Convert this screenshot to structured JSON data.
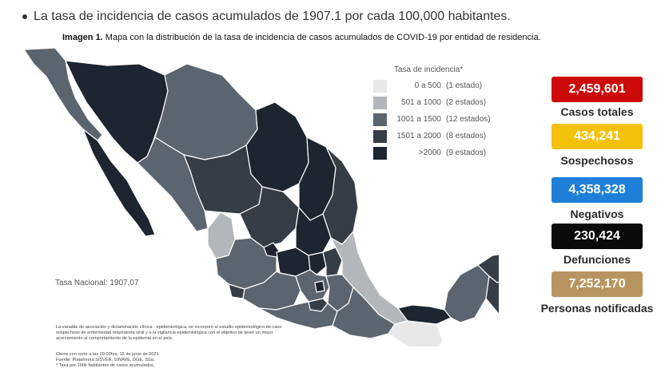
{
  "header": {
    "bullet_text": "La tasa de incidencia de casos acumulados de 1907.1 por cada 100,000 habitantes.",
    "figure_label": "Imagen 1.",
    "figure_caption": " Mapa con la distribución de la tasa de incidencia de casos acumulados de COVID-19 por entidad de residencia."
  },
  "legend": {
    "title": "Tasa de incidencia*",
    "items": [
      {
        "range": "0 a    500",
        "count": "(1 estado)",
        "color": "#e8e8e8"
      },
      {
        "range": "501 a  1000",
        "count": "(2 estados)",
        "color": "#b3b6ba"
      },
      {
        "range": "1001 a  1500",
        "count": "(12 estados)",
        "color": "#5b6570"
      },
      {
        "range": "1501 a  2000",
        "count": "(8 estados)",
        "color": "#353d47"
      },
      {
        "range": ">2000",
        "count": "(9 estados)",
        "color": "#1c2530"
      }
    ]
  },
  "stats": [
    {
      "value": "2,459,601",
      "label": "Casos totales",
      "color": "#cc0a0a"
    },
    {
      "value": "434,241",
      "label": "Sospechosos",
      "color": "#f4c20d"
    },
    {
      "value": "4,358,328",
      "label": "Negativos",
      "color": "#1f7fd8"
    },
    {
      "value": "230,424",
      "label": "Defunciones",
      "color": "#0a0a0a"
    },
    {
      "value": "7,252,170",
      "label": "Personas notificadas",
      "color": "#b89560"
    }
  ],
  "national_rate": "Tasa Nacional: 1907,07",
  "footnotes": {
    "main": "La variable de asociación y dictaminación clínica - epidemiológica, se incorporó al estudio epidemiológico de caso sospechoso de enfermedad respiratoria viral y a la vigilancia epidemiológica con el objetivo de tener un mejor acercamiento al comportamiento de la epidemia en el país.",
    "cutoff": "Cierre con corte a las 09:00hrs, 15 de junio de 2021",
    "source": "Fuente: Plataforma SISVER, SINAVE, DGE, SSa.",
    "rate_note": "* Tasa por 100k habitantes de casos acumulados."
  }
}
